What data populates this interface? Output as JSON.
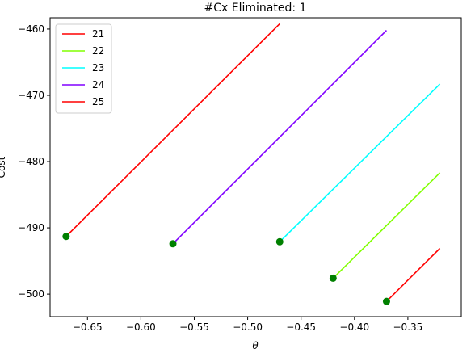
{
  "chart_data": {
    "type": "line",
    "title": "#Cx Eliminated: 1",
    "xlabel": "θ",
    "ylabel": "Cost",
    "xlim": [
      -0.685,
      -0.3
    ],
    "ylim": [
      -503.4,
      -458.3
    ],
    "xticks": [
      -0.65,
      -0.6,
      -0.55,
      -0.5,
      -0.45,
      -0.4,
      -0.35
    ],
    "xtick_labels": [
      "−0.65",
      "−0.60",
      "−0.55",
      "−0.50",
      "−0.45",
      "−0.40",
      "−0.35"
    ],
    "yticks": [
      -500,
      -490,
      -480,
      -470,
      -460
    ],
    "ytick_labels": [
      "−500",
      "−490",
      "−480",
      "−470",
      "−460"
    ],
    "legend_position": "top-left",
    "marker_color": "#008000",
    "series": [
      {
        "name": "21",
        "color": "#ff0000",
        "x": [
          -0.37,
          -0.32
        ],
        "y": [
          -501.1,
          -493.1
        ],
        "marker": [
          -0.37,
          -501.1
        ]
      },
      {
        "name": "22",
        "color": "#80ff00",
        "x": [
          -0.42,
          -0.32
        ],
        "y": [
          -497.6,
          -481.7
        ],
        "marker": [
          -0.42,
          -497.6
        ]
      },
      {
        "name": "23",
        "color": "#00ffff",
        "x": [
          -0.47,
          -0.32
        ],
        "y": [
          -492.1,
          -468.3
        ],
        "marker": [
          -0.47,
          -492.1
        ]
      },
      {
        "name": "24",
        "color": "#8000ff",
        "x": [
          -0.57,
          -0.37
        ],
        "y": [
          -492.4,
          -460.2
        ],
        "marker": [
          -0.57,
          -492.4
        ]
      },
      {
        "name": "25",
        "color": "#ff0000",
        "x": [
          -0.67,
          -0.47
        ],
        "y": [
          -491.3,
          -459.2
        ],
        "marker": [
          -0.67,
          -491.3
        ]
      }
    ]
  }
}
